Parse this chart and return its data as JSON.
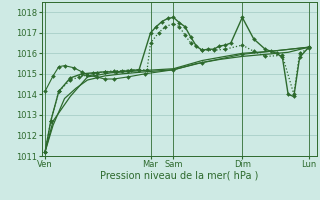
{
  "bg_color": "#ceeae4",
  "grid_color": "#a8cfc8",
  "line_color": "#2d6a2d",
  "xlabel": "Pression niveau de la mer( hPa )",
  "xlabel_color": "#2d6a2d",
  "tick_color": "#2d6a2d",
  "ylim": [
    1011.0,
    1018.5
  ],
  "yticks": [
    1011,
    1012,
    1013,
    1014,
    1015,
    1016,
    1017,
    1018
  ],
  "xlim": [
    0,
    24
  ],
  "day_labels": [
    "Ven",
    "Mar",
    "Sam",
    "Dim",
    "Lun"
  ],
  "day_x": [
    0.3,
    9.5,
    11.5,
    17.5,
    23.3
  ],
  "vline_x": [
    0.3,
    9.5,
    11.5,
    17.5,
    23.3
  ],
  "series": [
    {
      "x": [
        0.3,
        0.8,
        1.5,
        2.5,
        3.5,
        4.5,
        5.5,
        6.5,
        7.5,
        8.5,
        9.5,
        10.0,
        10.5,
        11.0,
        11.5,
        12.0,
        12.5,
        13.0,
        13.5,
        14.0,
        14.5,
        15.0,
        15.5,
        16.0,
        16.5,
        17.5,
        18.5,
        19.5,
        20.5,
        21.0,
        21.5,
        22.0,
        22.5,
        23.3
      ],
      "y": [
        1011.2,
        1012.7,
        1014.15,
        1014.8,
        1015.0,
        1015.05,
        1015.1,
        1015.1,
        1015.15,
        1015.2,
        1017.0,
        1017.3,
        1017.55,
        1017.7,
        1017.75,
        1017.5,
        1017.3,
        1016.8,
        1016.35,
        1016.15,
        1016.2,
        1016.2,
        1016.35,
        1016.4,
        1016.5,
        1017.75,
        1016.7,
        1016.2,
        1016.0,
        1015.8,
        1014.0,
        1013.9,
        1015.8,
        1016.3
      ],
      "marker": true,
      "dotted": false,
      "lw": 1.0
    },
    {
      "x": [
        0.3,
        0.8,
        1.5,
        2.5,
        3.3,
        4.0,
        4.8,
        5.5,
        6.3,
        7.0,
        7.8,
        8.5,
        9.2,
        9.5,
        10.2,
        10.8,
        11.5,
        12.0,
        12.5,
        13.0,
        14.0,
        15.0,
        16.0,
        17.5,
        18.5,
        19.5,
        21.0,
        22.0,
        22.5,
        23.3
      ],
      "y": [
        1011.2,
        1012.7,
        1014.15,
        1014.7,
        1014.85,
        1014.95,
        1015.05,
        1015.1,
        1015.15,
        1015.15,
        1015.2,
        1015.2,
        1015.2,
        1016.5,
        1017.0,
        1017.3,
        1017.45,
        1017.3,
        1016.9,
        1016.5,
        1016.15,
        1016.15,
        1016.2,
        1016.4,
        1016.1,
        1015.85,
        1015.9,
        1014.0,
        1016.0,
        1016.25
      ],
      "marker": true,
      "dotted": true,
      "lw": 0.9
    },
    {
      "x": [
        0.3,
        1.0,
        2.0,
        3.0,
        4.0,
        5.5,
        7.0,
        9.0,
        11.5,
        13.5,
        15.5,
        17.5,
        19.5,
        21.5,
        23.3
      ],
      "y": [
        1011.2,
        1012.5,
        1013.8,
        1014.3,
        1014.7,
        1014.9,
        1015.0,
        1015.1,
        1015.2,
        1015.5,
        1015.7,
        1015.85,
        1015.95,
        1016.05,
        1016.3
      ],
      "marker": false,
      "dotted": false,
      "lw": 0.9
    },
    {
      "x": [
        0.3,
        1.0,
        2.5,
        4.0,
        6.0,
        8.5,
        11.5,
        14.0,
        17.5,
        20.0,
        23.3
      ],
      "y": [
        1011.2,
        1012.7,
        1013.9,
        1014.85,
        1015.05,
        1015.15,
        1015.25,
        1015.65,
        1016.0,
        1016.1,
        1016.3
      ],
      "marker": false,
      "dotted": false,
      "lw": 0.9
    },
    {
      "x": [
        0.3,
        1.0,
        1.5,
        2.0,
        2.8,
        3.5,
        4.0,
        4.8,
        5.5,
        6.3,
        7.5,
        9.0,
        11.5,
        14.0,
        17.5,
        20.0,
        23.3
      ],
      "y": [
        1014.15,
        1014.9,
        1015.35,
        1015.4,
        1015.3,
        1015.1,
        1014.95,
        1014.85,
        1014.75,
        1014.75,
        1014.85,
        1015.0,
        1015.2,
        1015.55,
        1015.95,
        1016.1,
        1016.3
      ],
      "marker": true,
      "dotted": false,
      "lw": 0.8
    }
  ]
}
